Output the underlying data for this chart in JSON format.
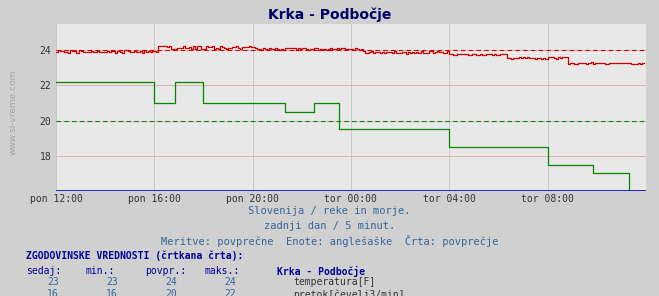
{
  "title": "Krka - Podbočje",
  "bg_color": "#d0d0d0",
  "plot_bg_color": "#e8e8e8",
  "fig_width": 6.59,
  "fig_height": 2.96,
  "xlim": [
    0,
    288
  ],
  "ylim": [
    16,
    25.5
  ],
  "yticks": [
    18,
    20,
    22,
    24
  ],
  "xtick_labels": [
    "pon 12:00",
    "pon 16:00",
    "pon 20:00",
    "tor 00:00",
    "tor 04:00",
    "tor 08:00"
  ],
  "xtick_positions": [
    0,
    48,
    96,
    144,
    192,
    240
  ],
  "subtitle1": "Slovenija / reke in morje.",
  "subtitle2": "zadnji dan / 5 minut.",
  "subtitle3": "Meritve: povprečne  Enote: anglešaške  Črta: povprečje",
  "legend_title": "ZGODOVINSKE VREDNOSTI (črtkana črta):",
  "table_headers": [
    "sedaj:",
    "min.:",
    "povpr.:",
    "maks.:"
  ],
  "temp_color": "#cc0000",
  "flow_color": "#008800",
  "temp_dash_color": "#cc0000",
  "flow_dash_color": "#008800",
  "temp_sedaj": 23,
  "temp_min": 23,
  "temp_povpr": 24,
  "temp_maks": 24,
  "flow_sedaj": 16,
  "flow_min": 16,
  "flow_povpr": 20,
  "flow_maks": 22,
  "temp_name": "temperatura[F]",
  "flow_name": "pretok[čevelj3/min]",
  "temp_avg": 24.0,
  "flow_avg": 20.0
}
